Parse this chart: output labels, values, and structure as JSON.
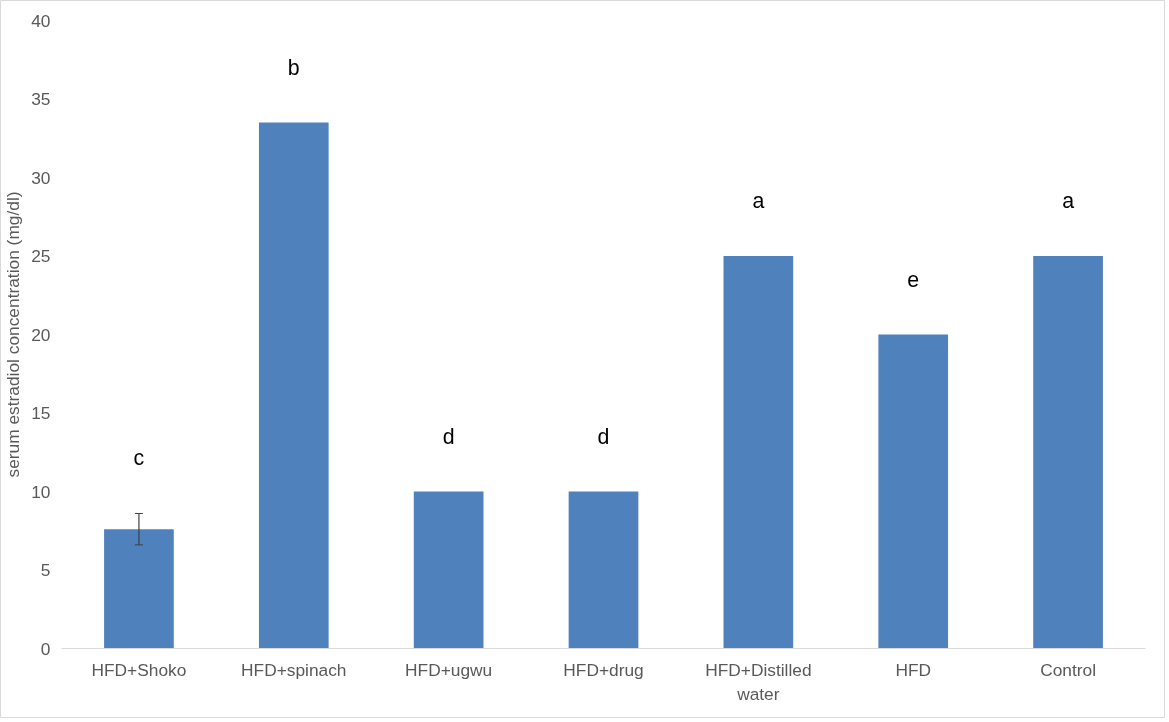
{
  "chart_data": {
    "type": "bar",
    "ylabel": "serum estradiol concentration (mg/dl)",
    "categories": [
      "HFD+Shoko",
      "HFD+spinach",
      "HFD+ugwu",
      "HFD+drug",
      "HFD+Distilled water",
      "HFD",
      "Control"
    ],
    "values": [
      7.6,
      33.5,
      10,
      10,
      25,
      20,
      25
    ],
    "errors": [
      1.0,
      null,
      null,
      null,
      null,
      null,
      null
    ],
    "color": "#4f81bd",
    "ylim": [
      0,
      40
    ],
    "yticks": [
      0,
      5,
      10,
      15,
      20,
      25,
      30,
      35,
      40
    ],
    "grid": false,
    "annotations": [
      "c",
      "b",
      "d",
      "d",
      "a",
      "e",
      "a"
    ]
  }
}
